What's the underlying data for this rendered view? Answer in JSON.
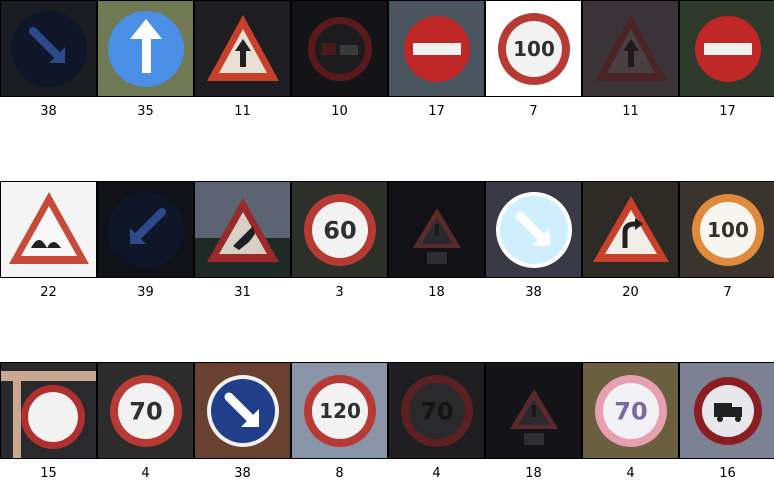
{
  "grid": {
    "rows": [
      {
        "tiles": [
          {
            "label": "38",
            "sign": "keep-right",
            "bg": "#1a1c22"
          },
          {
            "label": "35",
            "sign": "ahead-only",
            "bg": "#6f7a55"
          },
          {
            "label": "11",
            "sign": "right-of-way",
            "bg": "#1e1e22"
          },
          {
            "label": "10",
            "sign": "no-passing-trucks",
            "bg": "#141416"
          },
          {
            "label": "17",
            "sign": "no-entry",
            "bg": "#4a5560"
          },
          {
            "label": "7",
            "sign": "speed-limit",
            "text": "100",
            "bg": "#ffffff"
          },
          {
            "label": "11",
            "sign": "right-of-way-dark",
            "bg": "#3a3438"
          },
          {
            "label": "17",
            "sign": "no-entry",
            "bg": "#2f3a2c"
          }
        ]
      },
      {
        "tiles": [
          {
            "label": "22",
            "sign": "bumpy-road",
            "bg": "#f4f4f4"
          },
          {
            "label": "39",
            "sign": "keep-left",
            "bg": "#111218"
          },
          {
            "label": "31",
            "sign": "wild-animals",
            "bg": "#5c6474"
          },
          {
            "label": "3",
            "sign": "speed-limit",
            "text": "60",
            "bg": "#2d3028"
          },
          {
            "label": "18",
            "sign": "general-caution-dark",
            "bg": "#121216"
          },
          {
            "label": "38",
            "sign": "keep-right-light",
            "bg": "#3a3a46"
          },
          {
            "label": "20",
            "sign": "dangerous-curve-right",
            "bg": "#2e2a26"
          },
          {
            "label": "7",
            "sign": "speed-limit-orange",
            "text": "100",
            "bg": "#3a342e"
          }
        ]
      },
      {
        "tiles": [
          {
            "label": "15",
            "sign": "no-vehicles",
            "bg": "#2a2a2e"
          },
          {
            "label": "4",
            "sign": "speed-limit",
            "text": "70",
            "bg": "#2c2c2c"
          },
          {
            "label": "38",
            "sign": "keep-right-bright",
            "bg": "#6a4030"
          },
          {
            "label": "8",
            "sign": "speed-limit",
            "text": "120",
            "bg": "#8a94a8"
          },
          {
            "label": "4",
            "sign": "speed-limit-dark",
            "text": "70",
            "bg": "#1e1e20"
          },
          {
            "label": "18",
            "sign": "general-caution-dark",
            "bg": "#141418"
          },
          {
            "label": "4",
            "sign": "speed-limit-pink",
            "text": "70",
            "bg": "#6a6040"
          },
          {
            "label": "16",
            "sign": "no-trucks",
            "bg": "#7c8294"
          }
        ]
      }
    ]
  }
}
